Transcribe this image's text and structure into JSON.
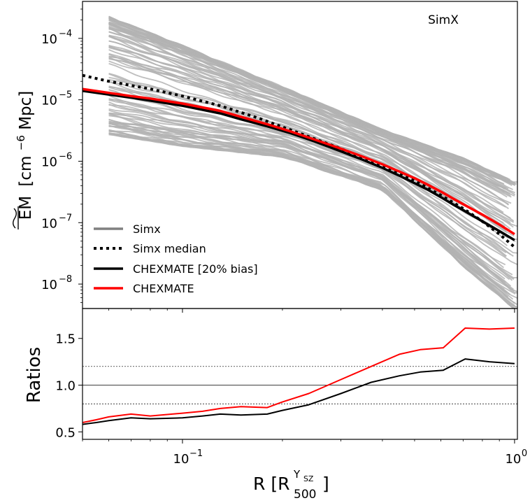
{
  "chart_data": [
    {
      "type": "line",
      "panel": "top",
      "annotation": "SimX",
      "ylabel_main": "EM",
      "ylabel_unit": "[cm",
      "ylabel_unit_sup": "−6",
      "ylabel_unit_tail": "Mpc]",
      "yscale": "log",
      "xscale": "log",
      "xlim": [
        0.05,
        1.02
      ],
      "ylim": [
        4e-09,
        0.0004
      ],
      "yticks": [
        {
          "value": 1e-08,
          "base": "10",
          "exp": "−8"
        },
        {
          "value": 1e-07,
          "base": "10",
          "exp": "−7"
        },
        {
          "value": 1e-06,
          "base": "10",
          "exp": "−6"
        },
        {
          "value": 1e-05,
          "base": "10",
          "exp": "−5"
        },
        {
          "value": 0.0001,
          "base": "10",
          "exp": "−4"
        }
      ],
      "legend_position": "bottom-left",
      "legend": [
        {
          "label": "Simx",
          "color": "#808080",
          "style": "solid"
        },
        {
          "label": "Simx median",
          "color": "#000000",
          "style": "dotted"
        },
        {
          "label": "CHEXMATE [20% bias]",
          "color": "#000000",
          "style": "solid"
        },
        {
          "label": "CHEXMATE",
          "color": "#ff0000",
          "style": "solid"
        }
      ],
      "simx_profile_count": 100,
      "simx_envelope": {
        "x": [
          0.06,
          0.1,
          0.2,
          0.4,
          0.7,
          1.0
        ],
        "upper": [
          0.00022,
          7.5e-05,
          1.6e-05,
          3.2e-06,
          1.1e-06,
          4.5e-07
        ],
        "lower": [
          2.8e-06,
          1.8e-06,
          1.2e-06,
          3.5e-07,
          2e-08,
          4e-09
        ]
      },
      "series": [
        {
          "name": "Simx median",
          "color": "#000000",
          "style": "dotted",
          "x": [
            0.05,
            0.06,
            0.08,
            0.1,
            0.13,
            0.17,
            0.22,
            0.3,
            0.4,
            0.5,
            0.6,
            0.7,
            0.8,
            0.9,
            1.0
          ],
          "y": [
            2.5e-05,
            2e-05,
            1.5e-05,
            1.15e-05,
            8e-06,
            5e-06,
            3e-06,
            1.6e-06,
            8.5e-07,
            4.8e-07,
            2.8e-07,
            1.7e-07,
            1.05e-07,
            6.5e-08,
            4e-08
          ]
        },
        {
          "name": "CHEXMATE [20% bias]",
          "color": "#000000",
          "style": "solid",
          "x": [
            0.05,
            0.06,
            0.07,
            0.08,
            0.1,
            0.13,
            0.15,
            0.18,
            0.21,
            0.25,
            0.3,
            0.35,
            0.4,
            0.45,
            0.5,
            0.55,
            0.6,
            0.65,
            0.7,
            0.8,
            0.9,
            1.0
          ],
          "y": [
            1.4e-05,
            1.22e-05,
            1.08e-05,
            9.7e-06,
            8e-06,
            6e-06,
            4.8e-06,
            3.7e-06,
            2.9e-06,
            2.1e-06,
            1.45e-06,
            1.05e-06,
            7.8e-07,
            5.8e-07,
            4.4e-07,
            3.4e-07,
            2.6e-07,
            2e-07,
            1.6e-07,
            1.05e-07,
            7.3e-08,
            5.2e-08
          ]
        },
        {
          "name": "CHEXMATE",
          "color": "#ff0000",
          "style": "solid",
          "x": [
            0.05,
            0.06,
            0.07,
            0.08,
            0.1,
            0.13,
            0.15,
            0.18,
            0.21,
            0.25,
            0.3,
            0.35,
            0.4,
            0.45,
            0.5,
            0.55,
            0.6,
            0.65,
            0.7,
            0.8,
            0.9,
            1.0
          ],
          "y": [
            1.5e-05,
            1.3e-05,
            1.15e-05,
            1.05e-05,
            8.7e-06,
            6.6e-06,
            5.3e-06,
            4e-06,
            3.1e-06,
            2.25e-06,
            1.6e-06,
            1.18e-06,
            8.9e-07,
            6.8e-07,
            5.3e-07,
            4.1e-07,
            3.2e-07,
            2.5e-07,
            2e-07,
            1.35e-07,
            9.3e-08,
            6.5e-08
          ]
        }
      ]
    },
    {
      "type": "line",
      "panel": "bottom",
      "ylabel": "Ratios",
      "xlabel_main": "R [R",
      "xlabel_sub": "500",
      "xlabel_sup": "Y",
      "xlabel_sup_sub": "SZ",
      "xlabel_tail": "]",
      "xscale": "log",
      "xlim": [
        0.05,
        1.02
      ],
      "ylim": [
        0.42,
        1.82
      ],
      "yticks": [
        "0.5",
        "1.0",
        "1.5"
      ],
      "xticks": [
        {
          "value": 0.1,
          "base": "10",
          "exp": "−1"
        },
        {
          "value": 1.0,
          "base": "10",
          "exp": "0"
        }
      ],
      "reference_lines": [
        {
          "y": 1.0,
          "style": "solid"
        },
        {
          "y": 0.8,
          "style": "dotted"
        },
        {
          "y": 1.2,
          "style": "dotted"
        }
      ],
      "series": [
        {
          "name": "CHEXMATE",
          "color": "#ff0000",
          "x": [
            0.05,
            0.055,
            0.06,
            0.07,
            0.08,
            0.1,
            0.115,
            0.13,
            0.15,
            0.18,
            0.2,
            0.24,
            0.3,
            0.37,
            0.45,
            0.52,
            0.61,
            0.71,
            0.84,
            1.0
          ],
          "y": [
            0.6,
            0.63,
            0.66,
            0.69,
            0.67,
            0.7,
            0.72,
            0.75,
            0.77,
            0.76,
            0.82,
            0.91,
            1.06,
            1.2,
            1.33,
            1.38,
            1.4,
            1.61,
            1.6,
            1.61
          ]
        },
        {
          "name": "CHEXMATE [20% bias]",
          "color": "#000000",
          "x": [
            0.05,
            0.055,
            0.06,
            0.07,
            0.08,
            0.1,
            0.115,
            0.13,
            0.15,
            0.18,
            0.2,
            0.24,
            0.3,
            0.37,
            0.45,
            0.52,
            0.61,
            0.71,
            0.84,
            1.0
          ],
          "y": [
            0.58,
            0.6,
            0.62,
            0.65,
            0.64,
            0.65,
            0.67,
            0.69,
            0.68,
            0.69,
            0.73,
            0.79,
            0.91,
            1.03,
            1.1,
            1.14,
            1.16,
            1.28,
            1.25,
            1.23
          ]
        }
      ]
    }
  ]
}
